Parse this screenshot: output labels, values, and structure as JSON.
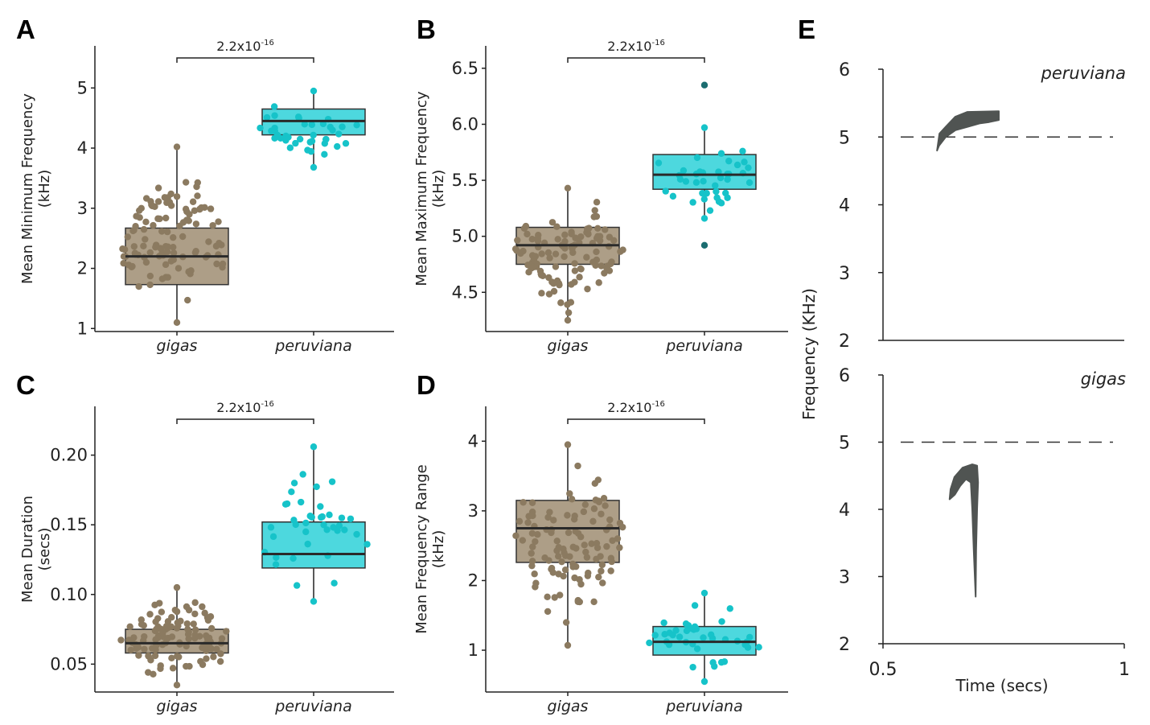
{
  "colors": {
    "gigas": "#8b7a60",
    "gigas_box": "#ad9e87",
    "peruviana": "#16c3c9",
    "peruviana_box": "#4dd8de",
    "axis": "#222222",
    "contour": "#505452"
  },
  "chart_data": [
    {
      "type": "box",
      "letter": "A",
      "ylabel_lines": [
        "Mean Minimum Frequency",
        "(kHz)"
      ],
      "categories": [
        "gigas",
        "peruviana"
      ],
      "ylim": [
        0.95,
        5.7
      ],
      "ticks": [
        1,
        2,
        3,
        4,
        5
      ],
      "tick_labels": [
        "1",
        "2",
        "3",
        "4",
        "5"
      ],
      "significance": {
        "base": "2.2x10",
        "exp": "-16"
      },
      "boxes": [
        {
          "q1": 1.73,
          "median": 2.2,
          "q3": 2.67,
          "whisker_low": 1.1,
          "whisker_high": 4.02,
          "n": 110,
          "seed": 11
        },
        {
          "q1": 4.22,
          "median": 4.45,
          "q3": 4.65,
          "whisker_low": 3.68,
          "whisker_high": 4.95,
          "n": 40,
          "seed": 12
        }
      ]
    },
    {
      "type": "box",
      "letter": "B",
      "ylabel_lines": [
        "Mean Maximum Frequency",
        "(kHz)"
      ],
      "categories": [
        "gigas",
        "peruviana"
      ],
      "ylim": [
        4.15,
        6.7
      ],
      "ticks": [
        4.5,
        5.0,
        5.5,
        6.0,
        6.5
      ],
      "tick_labels": [
        "4.5",
        "5.0",
        "5.5",
        "6.0",
        "6.5"
      ],
      "significance": {
        "base": "2.2x10",
        "exp": "-16"
      },
      "boxes": [
        {
          "q1": 4.75,
          "median": 4.92,
          "q3": 5.08,
          "whisker_low": 4.25,
          "whisker_high": 5.43,
          "n": 110,
          "seed": 21
        },
        {
          "q1": 5.42,
          "median": 5.55,
          "q3": 5.73,
          "whisker_low": 5.16,
          "whisker_high": 5.97,
          "n": 40,
          "seed": 22,
          "outliers": [
            6.35,
            4.92
          ]
        }
      ]
    },
    {
      "type": "box",
      "letter": "C",
      "ylabel_lines": [
        "Mean Duration",
        "(secs)"
      ],
      "categories": [
        "gigas",
        "peruviana"
      ],
      "ylim": [
        0.03,
        0.235
      ],
      "ticks": [
        0.05,
        0.1,
        0.15,
        0.2
      ],
      "tick_labels": [
        "0.05",
        "0.10",
        "0.15",
        "0.20"
      ],
      "significance": {
        "base": "2.2x10",
        "exp": "-16"
      },
      "boxes": [
        {
          "q1": 0.058,
          "median": 0.065,
          "q3": 0.075,
          "whisker_low": 0.035,
          "whisker_high": 0.105,
          "n": 110,
          "seed": 31
        },
        {
          "q1": 0.119,
          "median": 0.129,
          "q3": 0.152,
          "whisker_low": 0.095,
          "whisker_high": 0.206,
          "n": 40,
          "seed": 32
        }
      ]
    },
    {
      "type": "box",
      "letter": "D",
      "ylabel_lines": [
        "Mean Frequency Range",
        "(kHz)"
      ],
      "categories": [
        "gigas",
        "peruviana"
      ],
      "ylim": [
        0.4,
        4.5
      ],
      "ticks": [
        1,
        2,
        3,
        4
      ],
      "tick_labels": [
        "1",
        "2",
        "3",
        "4"
      ],
      "significance": {
        "base": "2.2x10",
        "exp": "-16"
      },
      "boxes": [
        {
          "q1": 2.26,
          "median": 2.75,
          "q3": 3.15,
          "whisker_low": 1.07,
          "whisker_high": 3.95,
          "n": 110,
          "seed": 41
        },
        {
          "q1": 0.93,
          "median": 1.12,
          "q3": 1.34,
          "whisker_low": 0.55,
          "whisker_high": 1.82,
          "n": 40,
          "seed": 42
        }
      ]
    }
  ],
  "panel_e": {
    "letter": "E",
    "ylabel": "Frequency (KHz)",
    "xlabel": "Time (secs)",
    "y_ticks": [
      2,
      3,
      4,
      5,
      6
    ],
    "y_tick_labels": [
      "2",
      "3",
      "4",
      "5",
      "6"
    ],
    "x_ticks": [
      0.5,
      1
    ],
    "x_tick_labels": [
      "0.5",
      "1"
    ],
    "reference_line_khz": 5,
    "subplots": [
      {
        "species": "peruviana",
        "contour": [
          [
            0.612,
            4.8
          ],
          [
            0.617,
            5.05
          ],
          [
            0.63,
            5.15
          ],
          [
            0.65,
            5.3
          ],
          [
            0.675,
            5.37
          ],
          [
            0.74,
            5.38
          ],
          [
            0.74,
            5.25
          ],
          [
            0.72,
            5.22
          ],
          [
            0.7,
            5.2
          ],
          [
            0.675,
            5.15
          ],
          [
            0.65,
            5.1
          ],
          [
            0.63,
            5.0
          ],
          [
            0.616,
            4.87
          ]
        ]
      },
      {
        "species": "gigas",
        "contour": [
          [
            0.638,
            4.15
          ],
          [
            0.64,
            4.3
          ],
          [
            0.648,
            4.48
          ],
          [
            0.665,
            4.62
          ],
          [
            0.685,
            4.67
          ],
          [
            0.695,
            4.65
          ],
          [
            0.697,
            4.4
          ],
          [
            0.695,
            4.0
          ],
          [
            0.693,
            3.4
          ],
          [
            0.692,
            2.7
          ],
          [
            0.688,
            3.4
          ],
          [
            0.685,
            4.0
          ],
          [
            0.682,
            4.4
          ],
          [
            0.672,
            4.45
          ],
          [
            0.66,
            4.35
          ],
          [
            0.649,
            4.22
          ]
        ]
      }
    ]
  }
}
